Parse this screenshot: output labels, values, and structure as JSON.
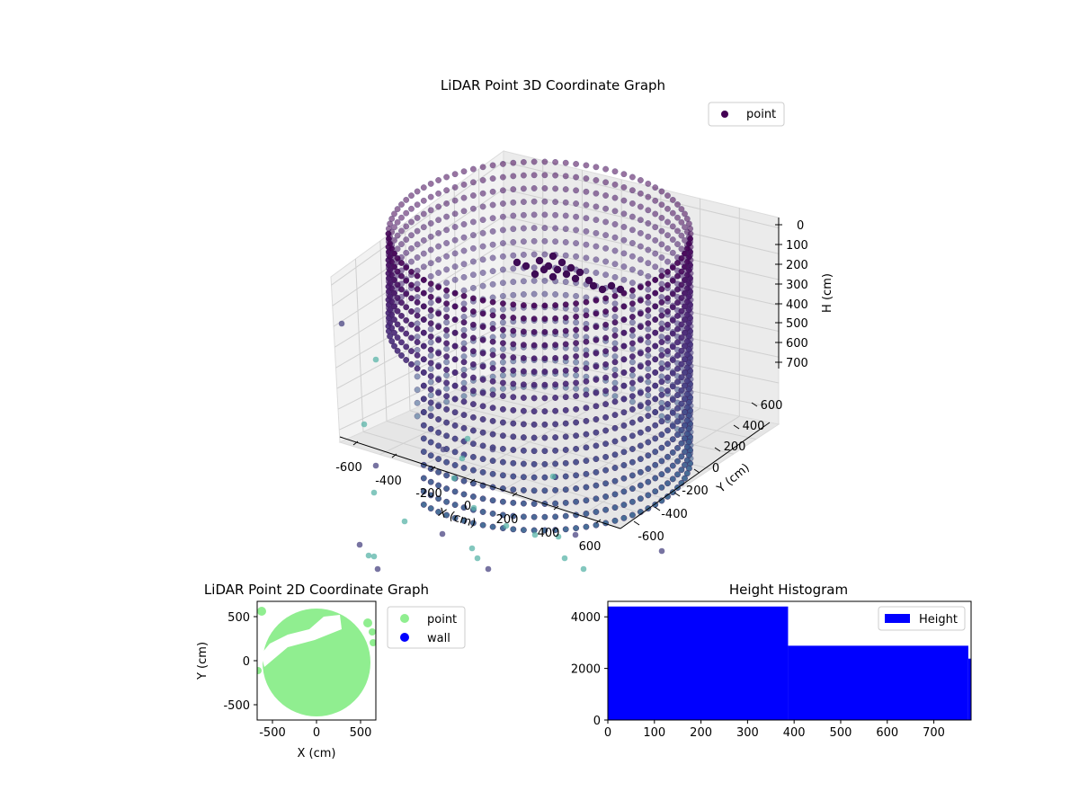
{
  "chart_data": [
    {
      "type": "scatter",
      "title": "LiDAR Point 3D Coordinate Graph",
      "xlabel": "X (cm)",
      "ylabel": "Y (cm)",
      "zlabel": "H (cm)",
      "xlim": [
        -700,
        700
      ],
      "ylim": [
        -700,
        700
      ],
      "zlim": [
        770,
        0
      ],
      "x_ticks": [
        "-600",
        "-400",
        "-200",
        "0",
        "200",
        "400",
        "600"
      ],
      "y_ticks": [
        "-600",
        "-400",
        "-200",
        "0",
        "200",
        "400",
        "600"
      ],
      "z_ticks": [
        "0",
        "100",
        "200",
        "300",
        "400",
        "500",
        "600",
        "700"
      ],
      "legend": [
        "point"
      ],
      "legend_position": "upper-right",
      "grid": true,
      "colormap": "viridis",
      "legend_marker_color": "#440154",
      "description_shape": "cylindrical wall of radius ~600 cm spanning heights 0-770 cm, with an opening on the left-front and a cluster of points near the top center"
    },
    {
      "type": "scatter",
      "title": "LiDAR Point 2D Coordinate Graph",
      "xlabel": "X (cm)",
      "ylabel": "Y (cm)",
      "xlim": [
        -680,
        680
      ],
      "ylim": [
        -680,
        680
      ],
      "x_ticks": [
        -500,
        0,
        500
      ],
      "y_ticks": [
        -500,
        0,
        500
      ],
      "series": [
        {
          "name": "point",
          "color": "#90ee90"
        },
        {
          "name": "wall",
          "color": "#0000ff"
        }
      ],
      "legend_position": "outside-right"
    },
    {
      "type": "bar",
      "title": "Height Histogram",
      "xlabel": "",
      "ylabel": "",
      "xlim": [
        0,
        780
      ],
      "ylim": [
        0,
        4600
      ],
      "x_ticks": [
        0,
        100,
        200,
        300,
        400,
        500,
        600,
        700
      ],
      "y_ticks": [
        0,
        2000,
        4000
      ],
      "bins": [
        {
          "start": 0,
          "end": 387,
          "count": 4400
        },
        {
          "start": 387,
          "end": 774,
          "count": 2880
        },
        {
          "start": 774,
          "end": 780,
          "count": 2380
        }
      ],
      "series": [
        {
          "name": "Height",
          "color": "#0000ff"
        }
      ],
      "legend_position": "upper-right"
    }
  ]
}
